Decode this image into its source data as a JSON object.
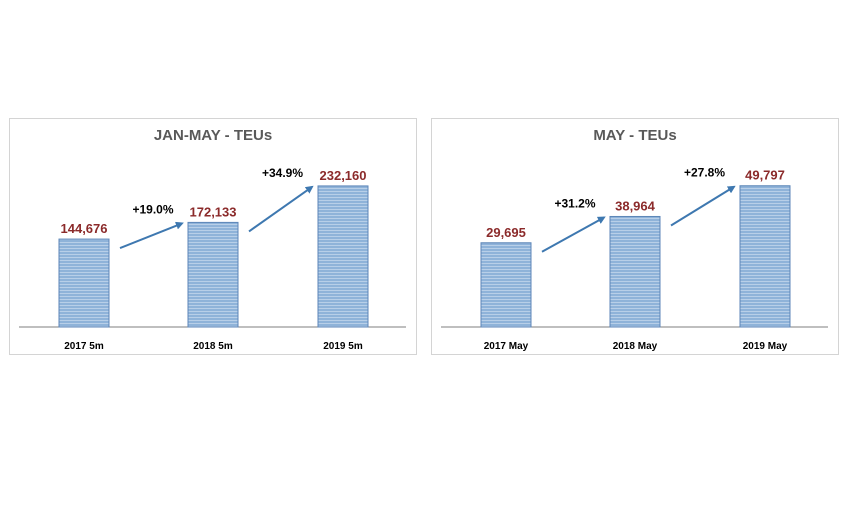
{
  "colors": {
    "bar_fill": "#8fb3d9",
    "bar_stripe": "#b8cfe8",
    "bar_border": "#5c86b8",
    "value_label": "#8b2a2a",
    "arrow": "#3e78b0",
    "title": "#595959",
    "growth_label": "#000000",
    "axis": "#7f7f7f"
  },
  "chart_data": [
    {
      "type": "bar",
      "title": "JAN-MAY - TEUs",
      "categories": [
        "2017  5m",
        "2018  5m",
        "2019 5m"
      ],
      "values": [
        144676,
        172133,
        232160
      ],
      "value_labels": [
        "144,676",
        "172,133",
        "232,160"
      ],
      "growth_labels": [
        "+19.0%",
        "+34.9%"
      ],
      "ylim": [
        0,
        260000
      ],
      "grid": false,
      "legend": "none"
    },
    {
      "type": "bar",
      "title": "MAY - TEUs",
      "categories": [
        "2017 May",
        "2018 May",
        "2019 May"
      ],
      "values": [
        29695,
        38964,
        49797
      ],
      "value_labels": [
        "29,695",
        "38,964",
        "49,797"
      ],
      "growth_labels": [
        "+31.2%",
        "+27.8%"
      ],
      "ylim": [
        0,
        55700
      ],
      "grid": false,
      "legend": "none"
    }
  ]
}
